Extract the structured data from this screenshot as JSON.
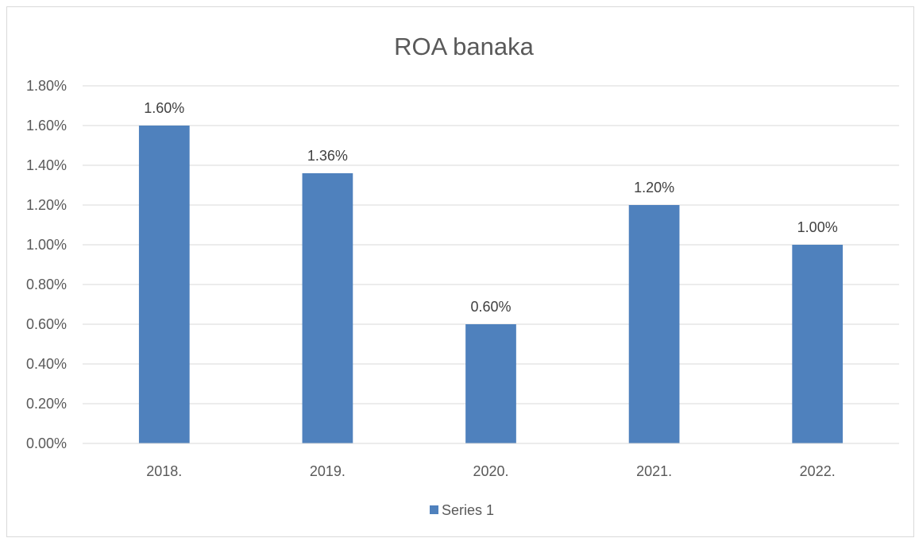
{
  "chart_data": {
    "type": "bar",
    "title": "ROA banaka",
    "categories": [
      "2018.",
      "2019.",
      "2020.",
      "2021.",
      "2022."
    ],
    "series": [
      {
        "name": "Series 1",
        "values": [
          1.6,
          1.36,
          0.6,
          1.2,
          1.0
        ],
        "data_labels": [
          "1.60%",
          "1.36%",
          "0.60%",
          "1.20%",
          "1.00%"
        ],
        "color": "#4f81bd"
      }
    ],
    "ylim": [
      0,
      1.8
    ],
    "ytick_values": [
      0,
      0.2,
      0.4,
      0.6,
      0.8,
      1.0,
      1.2,
      1.4,
      1.6,
      1.8
    ],
    "ytick_labels": [
      "0.00%",
      "0.20%",
      "0.40%",
      "0.60%",
      "0.80%",
      "1.00%",
      "1.20%",
      "1.40%",
      "1.60%",
      "1.80%"
    ],
    "xlabel": "",
    "ylabel": "",
    "grid": true,
    "legend": "bottom"
  }
}
